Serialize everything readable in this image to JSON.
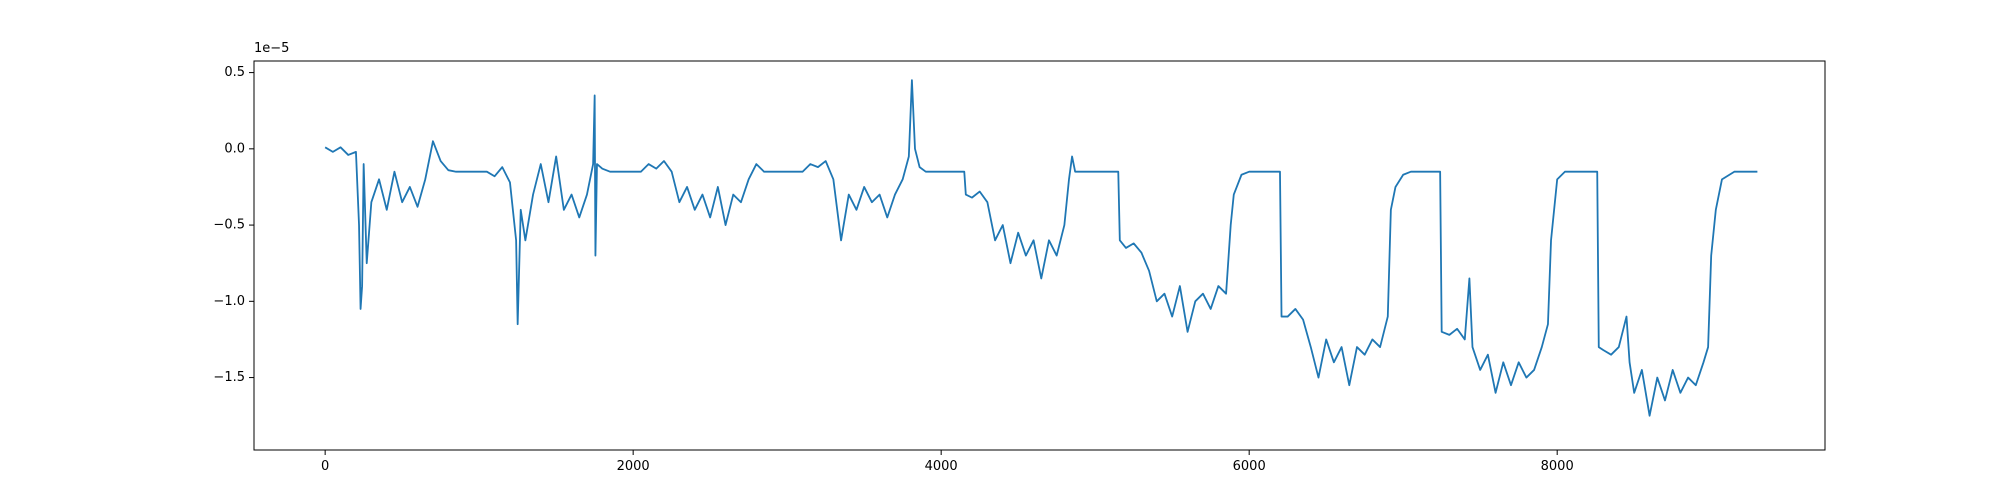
{
  "chart_data": {
    "type": "line",
    "offset_label": "1e−5",
    "x": [
      0,
      50,
      100,
      150,
      200,
      220,
      230,
      240,
      250,
      270,
      300,
      350,
      400,
      450,
      500,
      550,
      600,
      650,
      700,
      750,
      800,
      850,
      1050,
      1100,
      1150,
      1200,
      1240,
      1250,
      1270,
      1300,
      1350,
      1400,
      1450,
      1500,
      1550,
      1600,
      1650,
      1700,
      1740,
      1750,
      1755,
      1765,
      1800,
      1850,
      2050,
      2100,
      2150,
      2200,
      2250,
      2300,
      2350,
      2400,
      2450,
      2500,
      2550,
      2600,
      2650,
      2700,
      2750,
      2800,
      2850,
      3100,
      3150,
      3200,
      3250,
      3300,
      3350,
      3400,
      3450,
      3500,
      3550,
      3600,
      3650,
      3700,
      3750,
      3790,
      3810,
      3830,
      3860,
      3900,
      4150,
      4160,
      4200,
      4250,
      4300,
      4350,
      4400,
      4450,
      4500,
      4550,
      4600,
      4650,
      4700,
      4750,
      4800,
      4830,
      4850,
      4870,
      5150,
      5160,
      5200,
      5250,
      5300,
      5350,
      5400,
      5450,
      5500,
      5550,
      5600,
      5650,
      5700,
      5750,
      5800,
      5850,
      5880,
      5900,
      5950,
      6000,
      6200,
      6210,
      6250,
      6300,
      6350,
      6400,
      6450,
      6500,
      6550,
      6600,
      6650,
      6700,
      6750,
      6800,
      6850,
      6900,
      6920,
      6950,
      7000,
      7050,
      7240,
      7250,
      7300,
      7350,
      7400,
      7430,
      7450,
      7500,
      7550,
      7600,
      7650,
      7700,
      7750,
      7800,
      7850,
      7900,
      7940,
      7960,
      8000,
      8050,
      8260,
      8270,
      8300,
      8350,
      8400,
      8450,
      8470,
      8500,
      8550,
      8600,
      8650,
      8700,
      8750,
      8800,
      8850,
      8900,
      8950,
      8980,
      9000,
      9030,
      9070,
      9150,
      9300
    ],
    "series": [
      {
        "color": "#1f77b4",
        "values": [
          0.01,
          -0.02,
          0.01,
          -0.04,
          -0.02,
          -0.5,
          -1.05,
          -0.9,
          -0.1,
          -0.75,
          -0.35,
          -0.2,
          -0.4,
          -0.15,
          -0.35,
          -0.25,
          -0.38,
          -0.2,
          0.05,
          -0.08,
          -0.14,
          -0.15,
          -0.15,
          -0.18,
          -0.12,
          -0.22,
          -0.6,
          -1.15,
          -0.4,
          -0.6,
          -0.3,
          -0.1,
          -0.35,
          -0.05,
          -0.4,
          -0.3,
          -0.45,
          -0.3,
          -0.1,
          0.35,
          -0.7,
          -0.1,
          -0.13,
          -0.15,
          -0.15,
          -0.1,
          -0.13,
          -0.08,
          -0.15,
          -0.35,
          -0.25,
          -0.4,
          -0.3,
          -0.45,
          -0.25,
          -0.5,
          -0.3,
          -0.35,
          -0.2,
          -0.1,
          -0.15,
          -0.15,
          -0.1,
          -0.12,
          -0.08,
          -0.2,
          -0.6,
          -0.3,
          -0.4,
          -0.25,
          -0.35,
          -0.3,
          -0.45,
          -0.3,
          -0.2,
          -0.05,
          0.45,
          0.0,
          -0.12,
          -0.15,
          -0.15,
          -0.3,
          -0.32,
          -0.28,
          -0.35,
          -0.6,
          -0.5,
          -0.75,
          -0.55,
          -0.7,
          -0.6,
          -0.85,
          -0.6,
          -0.7,
          -0.5,
          -0.2,
          -0.05,
          -0.15,
          -0.15,
          -0.6,
          -0.65,
          -0.62,
          -0.68,
          -0.8,
          -1.0,
          -0.95,
          -1.1,
          -0.9,
          -1.2,
          -1.0,
          -0.95,
          -1.05,
          -0.9,
          -0.95,
          -0.5,
          -0.3,
          -0.17,
          -0.15,
          -0.15,
          -1.1,
          -1.1,
          -1.05,
          -1.12,
          -1.3,
          -1.5,
          -1.25,
          -1.4,
          -1.3,
          -1.55,
          -1.3,
          -1.35,
          -1.25,
          -1.3,
          -1.1,
          -0.4,
          -0.25,
          -0.17,
          -0.15,
          -0.15,
          -1.2,
          -1.22,
          -1.18,
          -1.25,
          -0.85,
          -1.3,
          -1.45,
          -1.35,
          -1.6,
          -1.4,
          -1.55,
          -1.4,
          -1.5,
          -1.45,
          -1.3,
          -1.15,
          -0.6,
          -0.2,
          -0.15,
          -0.15,
          -1.3,
          -1.32,
          -1.35,
          -1.3,
          -1.1,
          -1.4,
          -1.6,
          -1.45,
          -1.75,
          -1.5,
          -1.65,
          -1.45,
          -1.6,
          -1.5,
          -1.55,
          -1.4,
          -1.3,
          -0.7,
          -0.4,
          -0.2,
          -0.15,
          -0.15
        ]
      }
    ],
    "xlim": [
      -462,
      9739
    ],
    "ylim": [
      -1.975,
      0.576
    ],
    "xticks": [
      0,
      2000,
      4000,
      6000,
      8000
    ],
    "yticks": [
      0.5,
      {
        "value": 0,
        "label": "0.0"
      },
      {
        "value": -0.5,
        "label": "−0.5"
      },
      {
        "value": -1.0,
        "label": "−1.0"
      },
      {
        "value": -1.5,
        "label": "−1.5"
      }
    ]
  }
}
